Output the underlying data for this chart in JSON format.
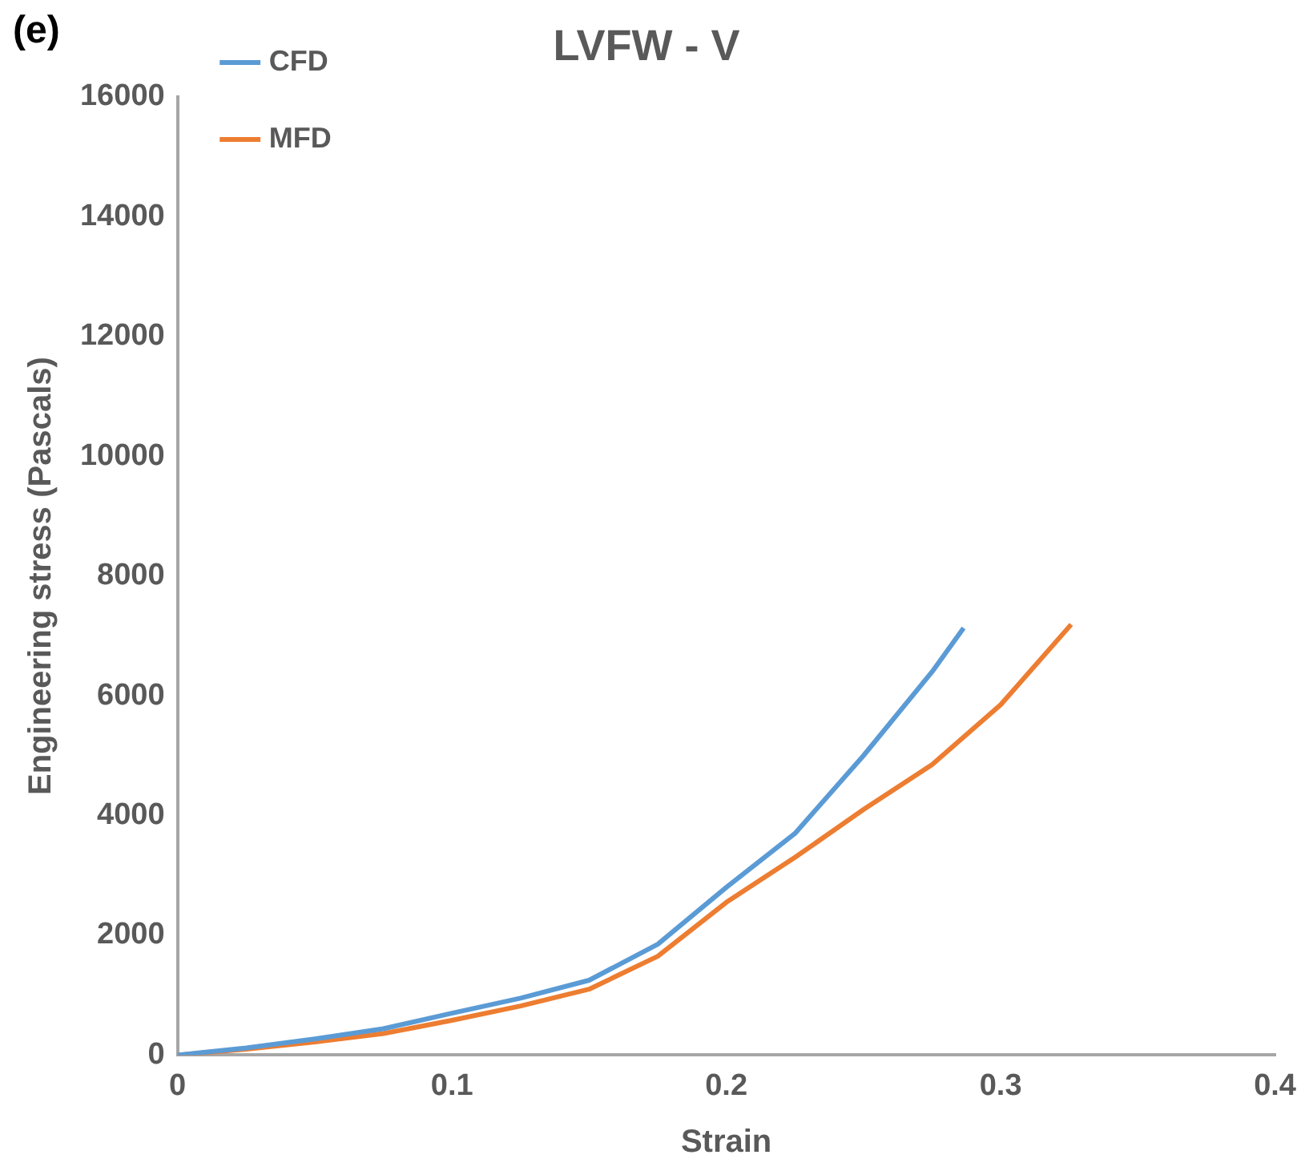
{
  "chart_data": {
    "type": "line",
    "title": "LVFW - V",
    "xlabel": "Strain",
    "ylabel": "Engineering stress (Pascals)",
    "annotations": [
      "(e)"
    ],
    "xlim": [
      0,
      0.4
    ],
    "xticks": [
      0,
      0.1,
      0.2,
      0.3,
      0.4
    ],
    "ylim": [
      0,
      16000
    ],
    "yticks": [
      0,
      2000,
      4000,
      6000,
      8000,
      10000,
      12000,
      14000,
      16000
    ],
    "grid": false,
    "legend": "top left",
    "marker": "none",
    "line_style": "solid",
    "series": [
      {
        "name": "CFD",
        "color": "#5b9bd5",
        "x": [
          0,
          0.025,
          0.05,
          0.075,
          0.1,
          0.125,
          0.15,
          0.175,
          0.2,
          0.225,
          0.25,
          0.275,
          0.2865
        ],
        "values": [
          0,
          120,
          270,
          440,
          700,
          950,
          1250,
          1850,
          2800,
          3700,
          5000,
          6400,
          7130
        ]
      },
      {
        "name": "MFD",
        "color": "#ed7d31",
        "x": [
          0,
          0.025,
          0.05,
          0.075,
          0.1,
          0.125,
          0.15,
          0.175,
          0.2,
          0.225,
          0.25,
          0.275,
          0.3,
          0.3257
        ],
        "values": [
          0,
          100,
          220,
          360,
          580,
          820,
          1100,
          1650,
          2550,
          3300,
          4100,
          4850,
          5850,
          7190
        ]
      }
    ]
  }
}
